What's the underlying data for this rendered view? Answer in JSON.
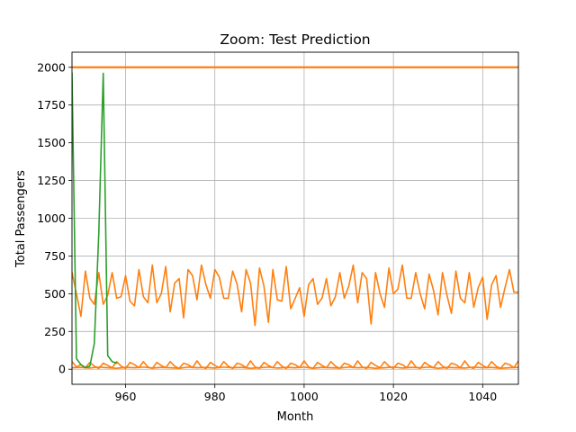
{
  "chart_data": {
    "type": "line",
    "title": "Zoom: Test Prediction",
    "xlabel": "Month",
    "ylabel": "Total Passengers",
    "xlim": [
      948,
      1048
    ],
    "ylim": [
      -100,
      2100
    ],
    "xticks": [
      960,
      980,
      1000,
      1020,
      1040
    ],
    "yticks": [
      0,
      250,
      500,
      750,
      1000,
      1250,
      1500,
      1750,
      2000
    ],
    "grid": true,
    "colors": {
      "orange": "#ff7f0e",
      "green": "#2ca02c",
      "grid": "#b0b0b0"
    },
    "series": [
      {
        "color": "#ff7f0e",
        "x": [
          948,
          1048
        ],
        "y": [
          2000,
          2000
        ]
      },
      {
        "color": "#ff7f0e",
        "x": [
          948,
          949,
          950,
          951,
          952,
          953,
          954,
          955,
          956,
          957,
          958,
          959,
          960,
          961,
          962,
          963,
          964,
          965,
          966,
          967,
          968,
          969,
          970,
          971,
          972,
          973,
          974,
          975,
          976,
          977,
          978,
          979,
          980,
          981,
          982,
          983,
          984,
          985,
          986,
          987,
          988,
          989,
          990,
          991,
          992,
          993,
          994,
          995,
          996,
          997,
          998,
          999,
          1000,
          1001,
          1002,
          1003,
          1004,
          1005,
          1006,
          1007,
          1008,
          1009,
          1010,
          1011,
          1012,
          1013,
          1014,
          1015,
          1016,
          1017,
          1018,
          1019,
          1020,
          1021,
          1022,
          1023,
          1024,
          1025,
          1026,
          1027,
          1028,
          1029,
          1030,
          1031,
          1032,
          1033,
          1034,
          1035,
          1036,
          1037,
          1038,
          1039,
          1040,
          1041,
          1042,
          1043,
          1044,
          1045,
          1046,
          1047,
          1048
        ],
        "y": [
          640,
          500,
          350,
          650,
          470,
          430,
          640,
          430,
          490,
          640,
          470,
          480,
          620,
          450,
          420,
          660,
          480,
          440,
          690,
          440,
          500,
          680,
          380,
          570,
          600,
          340,
          660,
          620,
          460,
          690,
          560,
          470,
          660,
          610,
          470,
          470,
          650,
          560,
          380,
          660,
          570,
          290,
          670,
          550,
          310,
          660,
          460,
          450,
          680,
          400,
          470,
          540,
          350,
          560,
          600,
          430,
          470,
          600,
          420,
          480,
          640,
          470,
          550,
          690,
          440,
          640,
          600,
          300,
          640,
          500,
          410,
          670,
          500,
          530,
          690,
          470,
          470,
          640,
          500,
          400,
          630,
          520,
          360,
          640,
          490,
          370,
          650,
          470,
          440,
          640,
          410,
          540,
          610,
          330,
          560,
          620,
          410,
          540,
          660,
          510,
          510
        ]
      },
      {
        "color": "#ff7f0e",
        "x": [
          948,
          949,
          950,
          951,
          952,
          953,
          954,
          955,
          956,
          957,
          958,
          959,
          960,
          961,
          962,
          963,
          964,
          965,
          966,
          967,
          968,
          969,
          970,
          971,
          972,
          973,
          974,
          975,
          976,
          977,
          978,
          979,
          980,
          981,
          982,
          983,
          984,
          985,
          986,
          987,
          988,
          989,
          990,
          991,
          992,
          993,
          994,
          995,
          996,
          997,
          998,
          999,
          1000,
          1001,
          1002,
          1003,
          1004,
          1005,
          1006,
          1007,
          1008,
          1009,
          1010,
          1011,
          1012,
          1013,
          1014,
          1015,
          1016,
          1017,
          1018,
          1019,
          1020,
          1021,
          1022,
          1023,
          1024,
          1025,
          1026,
          1027,
          1028,
          1029,
          1030,
          1031,
          1032,
          1033,
          1034,
          1035,
          1036,
          1037,
          1038,
          1039,
          1040,
          1041,
          1042,
          1043,
          1044,
          1045,
          1046,
          1047,
          1048
        ],
        "y": [
          50,
          15,
          30,
          10,
          45,
          20,
          5,
          40,
          25,
          10,
          50,
          20,
          5,
          45,
          30,
          10,
          50,
          15,
          5,
          45,
          25,
          10,
          50,
          20,
          5,
          40,
          30,
          10,
          55,
          15,
          5,
          45,
          25,
          10,
          50,
          20,
          5,
          40,
          30,
          10,
          55,
          15,
          5,
          45,
          25,
          10,
          50,
          20,
          5,
          40,
          30,
          10,
          55,
          15,
          5,
          45,
          25,
          10,
          50,
          20,
          5,
          40,
          30,
          10,
          55,
          15,
          5,
          45,
          25,
          10,
          50,
          20,
          5,
          40,
          30,
          10,
          55,
          15,
          5,
          45,
          25,
          10,
          50,
          20,
          5,
          40,
          30,
          10,
          55,
          15,
          5,
          45,
          25,
          10,
          50,
          20,
          5,
          40,
          30,
          10,
          55
        ]
      },
      {
        "color": "#ff7f0e",
        "x": [
          948,
          950,
          952,
          954,
          956,
          958,
          960,
          962,
          964,
          966,
          968,
          970,
          972,
          974,
          976,
          978,
          980,
          982,
          984,
          986,
          988,
          990,
          992,
          994,
          996,
          998,
          1000,
          1002,
          1004,
          1006,
          1008,
          1010,
          1012,
          1014,
          1016,
          1018,
          1020,
          1022,
          1024,
          1026,
          1028,
          1030,
          1032,
          1034,
          1036,
          1038,
          1040,
          1042,
          1044,
          1046,
          1048
        ],
        "y": [
          10,
          12,
          8,
          14,
          10,
          6,
          12,
          10,
          14,
          8,
          12,
          10,
          6,
          14,
          10,
          12,
          8,
          14,
          10,
          12,
          6,
          10,
          14,
          8,
          12,
          10,
          14,
          6,
          12,
          10,
          8,
          14,
          10,
          12,
          6,
          10,
          14,
          8,
          12,
          10,
          14,
          6,
          12,
          10,
          8,
          14,
          10,
          12,
          6,
          10,
          12
        ]
      },
      {
        "color": "#2ca02c",
        "x": [
          948,
          949,
          950,
          951,
          952,
          953,
          954,
          955,
          956,
          957,
          958
        ],
        "y": [
          1960,
          70,
          30,
          10,
          20,
          170,
          900,
          1960,
          90,
          50,
          40
        ]
      }
    ]
  }
}
